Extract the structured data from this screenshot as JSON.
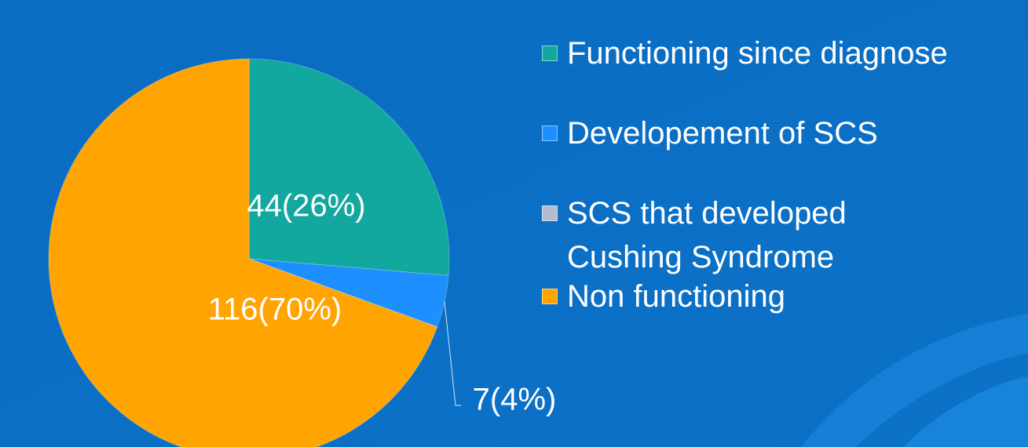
{
  "chart_data": {
    "type": "pie",
    "categories": [
      "Functioning since diagnose",
      "Developement of SCS",
      "SCS that developed Cushing Syndrome",
      "Non functioning"
    ],
    "values": [
      44,
      7,
      0,
      116
    ],
    "value_labels": [
      "44(26%)",
      "7(4%)",
      null,
      "116(70%)"
    ],
    "colors": [
      "#12a89f",
      "#1e8fff",
      "#b4bccb",
      "#ffa400"
    ],
    "start_angle": 0,
    "direction": "clockwise",
    "legend": "right"
  }
}
